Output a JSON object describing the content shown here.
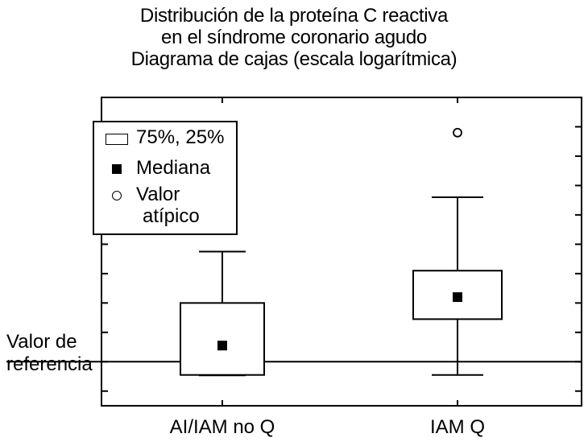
{
  "chart_data": {
    "type": "box",
    "title_lines": [
      "Distribución de la proteína C reactiva",
      "en el síndrome coronario agudo",
      "Diagrama de cajas (escala logarítmica)"
    ],
    "scale": "log",
    "ticks_labeled": false,
    "categories": [
      "AI/IAM no Q",
      "IAM Q"
    ],
    "boxes": [
      {
        "category": "AI/IAM no Q",
        "whisker_low": -0.45,
        "q1": -0.45,
        "median": 0.55,
        "q3": 2.0,
        "whisker_high": 3.75,
        "outliers": []
      },
      {
        "category": "IAM Q",
        "whisker_low": -0.45,
        "q1": 1.45,
        "median": 2.2,
        "q3": 3.1,
        "whisker_high": 5.6,
        "outliers": [
          7.8
        ]
      }
    ],
    "reference_line": {
      "value": 0,
      "label_lines": [
        "Valor de",
        "referencia"
      ]
    },
    "ylim": [
      -1.5,
      9.0
    ],
    "legend": {
      "placement": "top-left",
      "items": [
        {
          "symbol": "box",
          "label": "75%, 25%"
        },
        {
          "symbol": "filled-square",
          "label": "Mediana"
        },
        {
          "symbol": "open-circle",
          "label_lines": [
            "Valor",
            "atípico"
          ]
        }
      ]
    },
    "grid": false
  }
}
